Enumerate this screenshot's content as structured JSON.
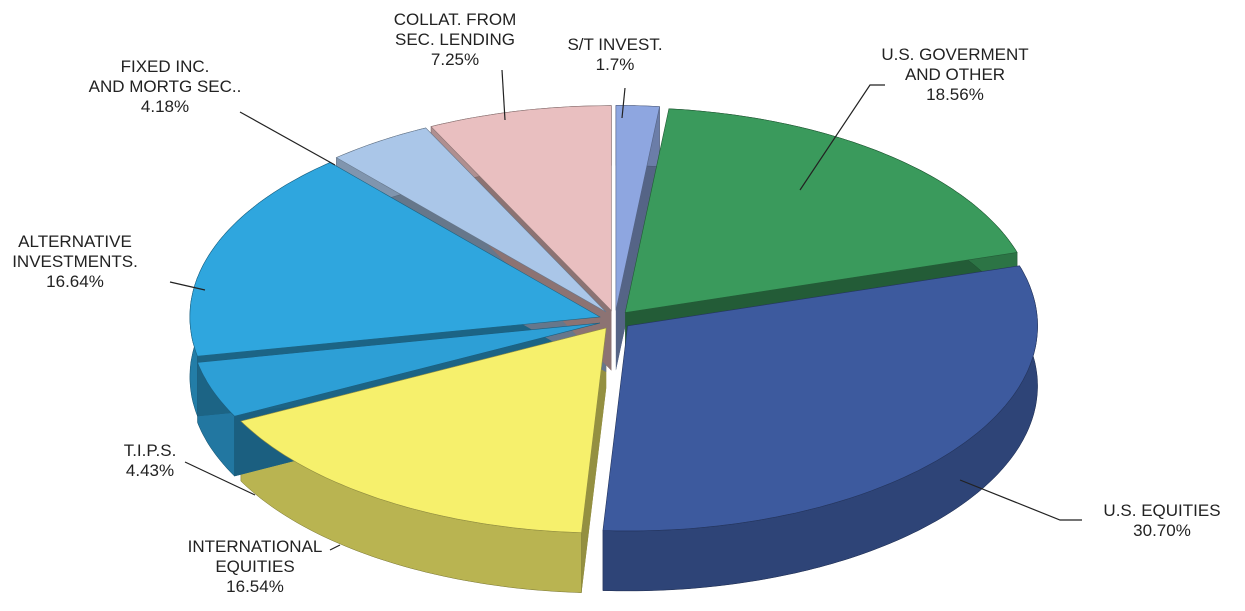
{
  "chart_data": {
    "type": "pie3d",
    "categories": [
      "S/T INVEST.",
      "U.S. GOVERMENT\nAND OTHER",
      "U.S. EQUITIES",
      "INTERNATIONAL\nEQUITIES",
      "T.I.P.S.",
      "ALTERNATIVE\nINVESTMENTS.",
      "FIXED INC.\nAND MORTG SEC..",
      "COLLAT. FROM\nSEC. LENDING"
    ],
    "values": [
      1.7,
      18.56,
      30.7,
      16.54,
      4.43,
      16.64,
      4.18,
      7.25
    ],
    "value_labels": [
      "1.7%",
      "18.56%",
      "30.70%",
      "16.54%",
      "4.43%",
      "16.64%",
      "4.18%",
      "7.25%"
    ],
    "colors": [
      "#8ea6e0",
      "#3a9a5c",
      "#3d5a9e",
      "#f6f06c",
      "#2d9fd6",
      "#2fa6de",
      "#aac6e8",
      "#e9bfc0"
    ]
  }
}
